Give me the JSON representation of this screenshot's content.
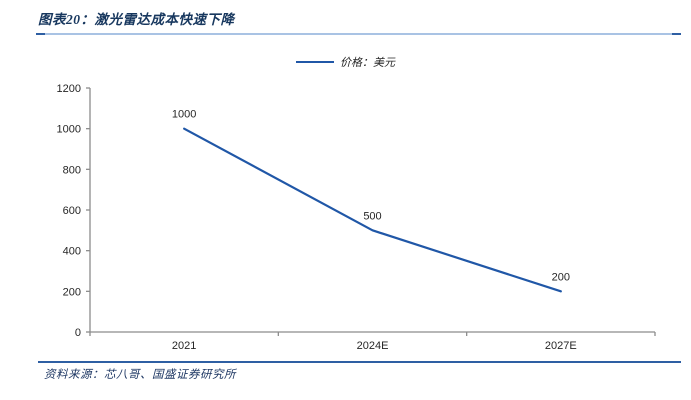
{
  "header": {
    "title": "图表20：激光雷达成本快速下降"
  },
  "legend": {
    "label": "价格：美元"
  },
  "footer": {
    "source": "资料来源：芯八哥、国盛证券研究所"
  },
  "colors": {
    "series_line": "#2057A7",
    "title_text": "#17375E",
    "footer_text": "#1F3864",
    "rule_light": "#A9C3E4",
    "rule_dark": "#2E5FA3",
    "axis": "#8C8C8C",
    "label_text": "#262626"
  },
  "chart_data": {
    "type": "line",
    "title": "图表20：激光雷达成本快速下降",
    "categories": [
      "2021",
      "2024E",
      "2027E"
    ],
    "series": [
      {
        "name": "价格：美元",
        "values": [
          1000,
          500,
          200
        ]
      }
    ],
    "data_labels": [
      "1000",
      "500",
      "200"
    ],
    "xlabel": "",
    "ylabel": "",
    "ylim": [
      0,
      1200
    ],
    "ytick_step": 200,
    "yticks": [
      0,
      200,
      400,
      600,
      800,
      1000,
      1200
    ],
    "grid": false,
    "legend_position": "top-center",
    "legend_entries": [
      "价格：美元"
    ]
  }
}
